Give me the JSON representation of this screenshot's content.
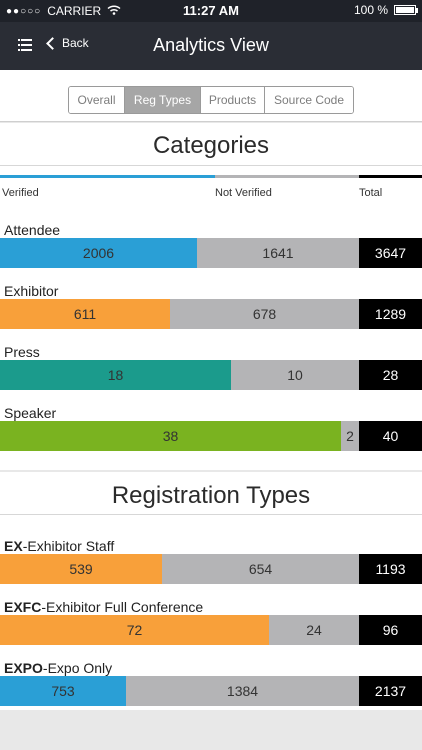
{
  "status": {
    "carrier": "CARRIER",
    "time": "11:27 AM",
    "battery": "100 %",
    "signal": "●●○○○"
  },
  "nav": {
    "title": "Analytics View",
    "back_label": "Back"
  },
  "tabs": [
    {
      "label": "Overall",
      "active": false
    },
    {
      "label": "Reg Types",
      "active": true
    },
    {
      "label": "Products",
      "active": false
    },
    {
      "label": "Source Code",
      "active": false
    }
  ],
  "categories": {
    "title": "Categories",
    "legend": {
      "verified": "Verified",
      "not_verified": "Not Verified",
      "total": "Total"
    },
    "legend_colors": {
      "verified": "#2a9fd6",
      "not_verified": "#b4b4b6",
      "total": "#000000"
    },
    "rows": [
      {
        "name": "Attendee",
        "verified": 2006,
        "not_verified": 1641,
        "total": 3647,
        "color": "#2a9fd6"
      },
      {
        "name": "Exhibitor",
        "verified": 611,
        "not_verified": 678,
        "total": 1289,
        "color": "#f8a03a"
      },
      {
        "name": "Press",
        "verified": 18,
        "not_verified": 10,
        "total": 28,
        "color": "#1b9b8c"
      },
      {
        "name": "Speaker",
        "verified": 38,
        "not_verified": 2,
        "total": 40,
        "color": "#7ab320"
      }
    ]
  },
  "reg_types": {
    "title": "Registration Types",
    "rows": [
      {
        "code": "EX",
        "desc": "-Exhibitor Staff",
        "verified": 539,
        "not_verified": 654,
        "total": 1193,
        "color": "#f8a03a"
      },
      {
        "code": "EXFC",
        "desc": "-Exhibitor Full Conference",
        "verified": 72,
        "not_verified": 24,
        "total": 96,
        "color": "#f8a03a"
      },
      {
        "code": "EXPO",
        "desc": "-Expo Only",
        "verified": 753,
        "not_verified": 1384,
        "total": 2137,
        "color": "#2a9fd6"
      }
    ]
  }
}
